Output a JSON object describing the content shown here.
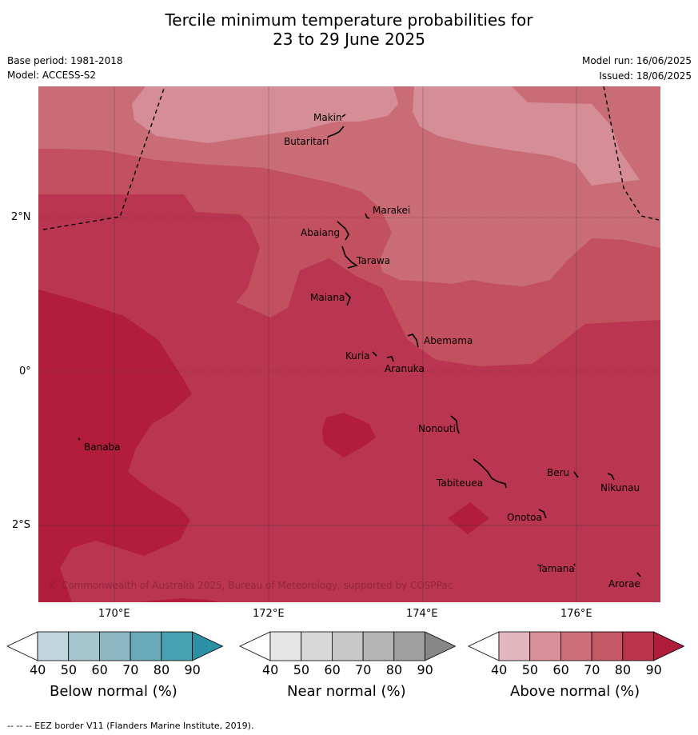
{
  "title_line1": "Tercile minimum temperature probabilities for",
  "title_line2": "23 to 29 June 2025",
  "base_period": "Base period: 1981-2018",
  "model": "Model: ACCESS-S2",
  "model_run": "Model run: 16/06/2025",
  "issued": "Issued: 18/06/2025",
  "copyright": "© Commonwealth of Australia 2025, Bureau of Meteorology, supported by COSPPac",
  "lat_labels": [
    "2°N",
    "0°",
    "2°S"
  ],
  "lon_labels": [
    "170°E",
    "172°E",
    "174°E",
    "176°E"
  ],
  "places": [
    "Makin",
    "Butaritari",
    "Marakei",
    "Abaiang",
    "Tarawa",
    "Maiana",
    "Abemama",
    "Kuria",
    "Aranuka",
    "Nonouti",
    "Banaba",
    "Tabiteuea",
    "Beru",
    "Nikunau",
    "Onotoa",
    "Tamana",
    "Arorae"
  ],
  "colorbars": [
    {
      "title": "Below normal (%)",
      "ticks": [
        "40",
        "50",
        "60",
        "70",
        "80",
        "90"
      ],
      "colors": [
        "#ffffff",
        "#c0d6dc",
        "#a6c6cf",
        "#8bb7c3",
        "#6aa9b8",
        "#48a1b1",
        "#2c8fa6"
      ]
    },
    {
      "title": "Near normal (%)",
      "ticks": [
        "40",
        "50",
        "60",
        "70",
        "80",
        "90"
      ],
      "colors": [
        "#ffffff",
        "#e6e6e6",
        "#d8d8d8",
        "#c8c8c8",
        "#b4b4b4",
        "#a0a0a0",
        "#878787"
      ]
    },
    {
      "title": "Above normal (%)",
      "ticks": [
        "40",
        "50",
        "60",
        "70",
        "80",
        "90"
      ],
      "colors": [
        "#ffffff",
        "#e2b7bf",
        "#d78f98",
        "#cd6f78",
        "#c45864",
        "#b9334a",
        "#b01d3b"
      ]
    }
  ],
  "map_colors": {
    "c50": "#d68e96",
    "c60": "#c96c76",
    "c70": "#c2505e",
    "c80": "#ba3550",
    "c90": "#b11d3b"
  },
  "footer": "--  --  -- EEZ border V11 (Flanders Marine Institute, 2019)."
}
